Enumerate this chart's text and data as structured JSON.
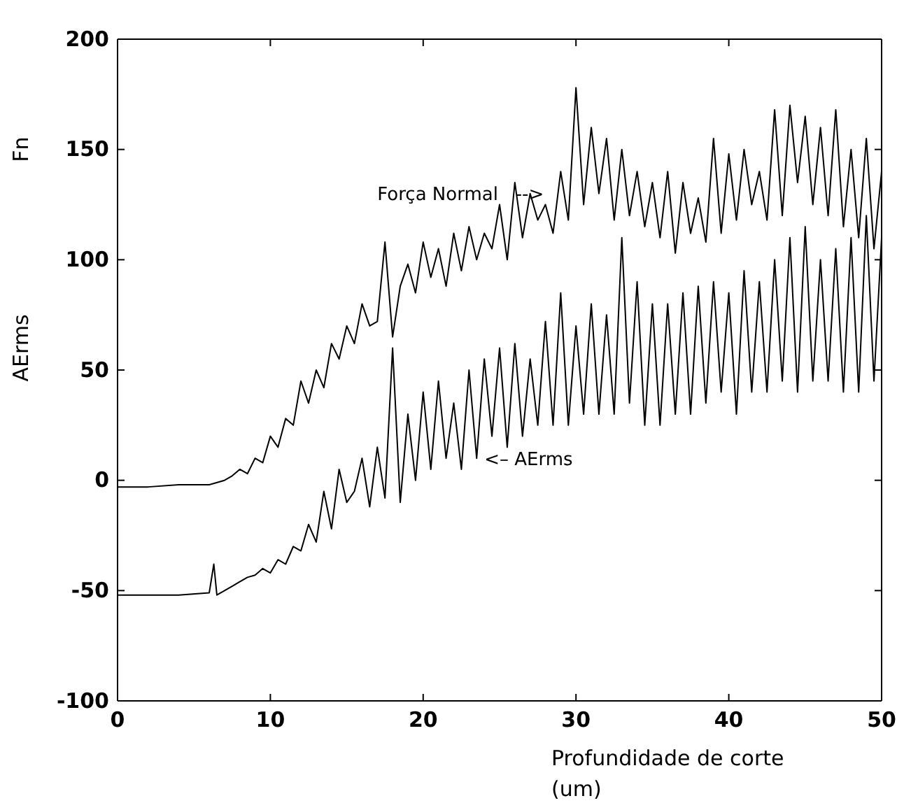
{
  "chart_data": {
    "type": "line",
    "ylabel": "Fn",
    "xlabel": "Profundidade de corte (um)",
    "xlim": [
      0,
      50
    ],
    "xticks": [
      0,
      10,
      20,
      30,
      40,
      50
    ],
    "ylim": [
      -100,
      200
    ],
    "yticks": [
      -100,
      -50,
      0,
      50,
      100,
      150,
      200
    ],
    "grid": false,
    "annotations": [
      "Força Normal   -->",
      "<– AErms",
      "AErms"
    ],
    "series": [
      {
        "color": "#000000",
        "x": [
          0,
          2,
          4,
          6,
          7,
          7.5,
          8,
          8.5,
          9,
          9.5,
          10,
          10.5,
          11,
          11.5,
          12,
          12.5,
          13,
          13.5,
          14,
          14.5,
          15,
          15.5,
          16,
          16.5,
          17,
          17.5,
          18,
          18.5,
          19,
          19.5,
          20,
          20.5,
          21,
          21.5,
          22,
          22.5,
          23,
          23.5,
          24,
          24.5,
          25,
          25.5,
          26,
          26.5,
          27,
          27.5,
          28,
          28.5,
          29,
          29.5,
          30,
          30.5,
          31,
          31.5,
          32,
          32.5,
          33,
          33.5,
          34,
          34.5,
          35,
          35.5,
          36,
          36.5,
          37,
          37.5,
          38,
          38.5,
          39,
          39.5,
          40,
          40.5,
          41,
          41.5,
          42,
          42.5,
          43,
          43.5,
          44,
          44.5,
          45,
          45.5,
          46,
          46.5,
          47,
          47.5,
          48,
          48.5,
          49,
          49.5,
          50
        ],
        "values": [
          -3,
          -3,
          -2,
          -2,
          0,
          2,
          5,
          3,
          10,
          8,
          20,
          15,
          28,
          25,
          45,
          35,
          50,
          42,
          62,
          55,
          70,
          62,
          80,
          70,
          72,
          108,
          65,
          88,
          98,
          85,
          108,
          92,
          105,
          88,
          112,
          95,
          115,
          100,
          112,
          105,
          125,
          100,
          135,
          110,
          130,
          118,
          125,
          112,
          140,
          118,
          178,
          125,
          160,
          130,
          155,
          118,
          150,
          120,
          140,
          115,
          135,
          110,
          140,
          103,
          135,
          112,
          128,
          108,
          155,
          112,
          148,
          118,
          150,
          125,
          140,
          118,
          168,
          120,
          170,
          135,
          165,
          125,
          160,
          120,
          168,
          115,
          150,
          110,
          155,
          105,
          140
        ]
      },
      {
        "color": "#000000",
        "x": [
          0,
          2,
          4,
          6,
          6.3,
          6.5,
          7,
          7.5,
          8,
          8.5,
          9,
          9.5,
          10,
          10.5,
          11,
          11.5,
          12,
          12.5,
          13,
          13.5,
          14,
          14.5,
          15,
          15.5,
          16,
          16.5,
          17,
          17.5,
          18,
          18.5,
          19,
          19.5,
          20,
          20.5,
          21,
          21.5,
          22,
          22.5,
          23,
          23.5,
          24,
          24.5,
          25,
          25.5,
          26,
          26.5,
          27,
          27.5,
          28,
          28.5,
          29,
          29.5,
          30,
          30.5,
          31,
          31.5,
          32,
          32.5,
          33,
          33.5,
          34,
          34.5,
          35,
          35.5,
          36,
          36.5,
          37,
          37.5,
          38,
          38.5,
          39,
          39.5,
          40,
          40.5,
          41,
          41.5,
          42,
          42.5,
          43,
          43.5,
          44,
          44.5,
          45,
          45.5,
          46,
          46.5,
          47,
          47.5,
          48,
          48.5,
          49,
          49.5,
          50
        ],
        "values": [
          -52,
          -52,
          -52,
          -51,
          -38,
          -52,
          -50,
          -48,
          -46,
          -44,
          -43,
          -40,
          -42,
          -36,
          -38,
          -30,
          -32,
          -20,
          -28,
          -5,
          -22,
          5,
          -10,
          -5,
          10,
          -12,
          15,
          -8,
          60,
          -10,
          30,
          0,
          40,
          5,
          45,
          10,
          35,
          5,
          50,
          10,
          55,
          20,
          60,
          15,
          62,
          20,
          55,
          25,
          72,
          25,
          85,
          25,
          70,
          30,
          80,
          30,
          75,
          30,
          110,
          35,
          90,
          25,
          80,
          25,
          80,
          30,
          85,
          30,
          88,
          35,
          90,
          40,
          85,
          30,
          95,
          40,
          90,
          40,
          100,
          45,
          110,
          40,
          115,
          45,
          100,
          45,
          105,
          40,
          110,
          40,
          120,
          45,
          110
        ]
      }
    ]
  }
}
